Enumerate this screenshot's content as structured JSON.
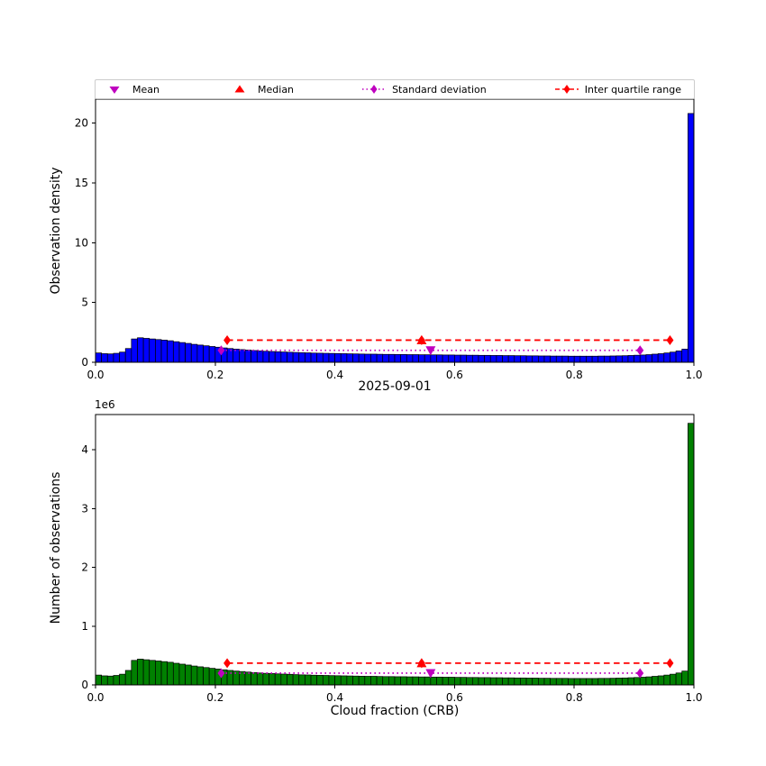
{
  "figure": {
    "title": "2025-09-01"
  },
  "colors": {
    "mean_std": "#bf00bf",
    "median_iqr": "#ff0000",
    "top_bar": "#0000ff",
    "bottom_bar": "#008000",
    "edge": "#000000"
  },
  "legend": {
    "items": [
      {
        "label": "Mean",
        "marker": "triangle-down",
        "color": "#bf00bf"
      },
      {
        "label": "Median",
        "marker": "triangle-up",
        "color": "#ff0000"
      },
      {
        "label": "Standard deviation",
        "marker": "diamond-dotted-line",
        "color": "#bf00bf"
      },
      {
        "label": "Inter quartile range",
        "marker": "diamond-dashed-line",
        "color": "#ff0000"
      }
    ]
  },
  "chart_data": [
    {
      "type": "bar",
      "title": "",
      "xlabel": "",
      "ylabel": "Observation density",
      "scale_label": "",
      "bar_color": "#0000ff",
      "edge_color": "#000000",
      "xlim": [
        0.0,
        1.0
      ],
      "ylim": [
        0,
        22
      ],
      "xticks": [
        0.0,
        0.2,
        0.4,
        0.6,
        0.8,
        1.0
      ],
      "xtick_labels": [
        "0.0",
        "0.2",
        "0.4",
        "0.6",
        "0.8",
        "1.0"
      ],
      "yticks": [
        0,
        5,
        10,
        15,
        20
      ],
      "ytick_labels": [
        "0",
        "5",
        "10",
        "15",
        "20"
      ],
      "bin_start": 0.0,
      "bin_width": 0.01,
      "values": [
        0.78,
        0.72,
        0.7,
        0.75,
        0.85,
        1.15,
        1.95,
        2.05,
        2.0,
        1.95,
        1.9,
        1.85,
        1.8,
        1.72,
        1.65,
        1.58,
        1.5,
        1.44,
        1.38,
        1.32,
        1.26,
        1.2,
        1.15,
        1.1,
        1.06,
        1.02,
        0.98,
        0.95,
        0.92,
        0.9,
        0.88,
        0.86,
        0.84,
        0.82,
        0.8,
        0.79,
        0.77,
        0.76,
        0.75,
        0.74,
        0.73,
        0.72,
        0.71,
        0.7,
        0.69,
        0.68,
        0.68,
        0.67,
        0.66,
        0.66,
        0.65,
        0.65,
        0.64,
        0.64,
        0.63,
        0.63,
        0.62,
        0.62,
        0.61,
        0.61,
        0.6,
        0.6,
        0.59,
        0.59,
        0.58,
        0.58,
        0.57,
        0.57,
        0.56,
        0.56,
        0.55,
        0.55,
        0.54,
        0.54,
        0.53,
        0.53,
        0.52,
        0.52,
        0.52,
        0.51,
        0.51,
        0.51,
        0.51,
        0.51,
        0.52,
        0.52,
        0.53,
        0.54,
        0.55,
        0.57,
        0.59,
        0.61,
        0.64,
        0.68,
        0.72,
        0.78,
        0.85,
        0.95,
        1.1,
        20.8
      ],
      "stats": {
        "mean_x": 0.56,
        "median_x": 0.545,
        "std_range": [
          0.21,
          0.91
        ],
        "std_line_y": 1.0,
        "iqr_range": [
          0.22,
          0.96
        ],
        "iqr_line_y": 1.85
      }
    },
    {
      "type": "bar",
      "title": "",
      "xlabel": "Cloud fraction (CRB)",
      "ylabel": "Number of observations",
      "scale_label": "1e6",
      "bar_color": "#008000",
      "edge_color": "#000000",
      "xlim": [
        0.0,
        1.0
      ],
      "ylim": [
        0,
        4.6
      ],
      "xticks": [
        0.0,
        0.2,
        0.4,
        0.6,
        0.8,
        1.0
      ],
      "xtick_labels": [
        "0.0",
        "0.2",
        "0.4",
        "0.6",
        "0.8",
        "1.0"
      ],
      "yticks": [
        0,
        1,
        2,
        3,
        4
      ],
      "ytick_labels": [
        "0",
        "1",
        "2",
        "3",
        "4"
      ],
      "bin_start": 0.0,
      "bin_width": 0.01,
      "values": [
        0.167,
        0.154,
        0.15,
        0.161,
        0.182,
        0.246,
        0.417,
        0.439,
        0.428,
        0.417,
        0.407,
        0.396,
        0.385,
        0.368,
        0.353,
        0.338,
        0.321,
        0.308,
        0.295,
        0.282,
        0.27,
        0.257,
        0.246,
        0.235,
        0.227,
        0.218,
        0.21,
        0.203,
        0.197,
        0.193,
        0.188,
        0.184,
        0.18,
        0.175,
        0.171,
        0.169,
        0.165,
        0.163,
        0.161,
        0.158,
        0.156,
        0.154,
        0.152,
        0.15,
        0.148,
        0.146,
        0.146,
        0.143,
        0.141,
        0.141,
        0.139,
        0.139,
        0.137,
        0.137,
        0.135,
        0.135,
        0.133,
        0.133,
        0.131,
        0.131,
        0.128,
        0.128,
        0.126,
        0.126,
        0.124,
        0.124,
        0.122,
        0.122,
        0.12,
        0.12,
        0.118,
        0.118,
        0.116,
        0.116,
        0.113,
        0.113,
        0.111,
        0.111,
        0.111,
        0.109,
        0.109,
        0.109,
        0.109,
        0.109,
        0.111,
        0.111,
        0.113,
        0.116,
        0.118,
        0.122,
        0.126,
        0.131,
        0.137,
        0.146,
        0.154,
        0.167,
        0.182,
        0.203,
        0.235,
        4.451
      ],
      "stats": {
        "mean_x": 0.56,
        "median_x": 0.545,
        "std_range": [
          0.21,
          0.91
        ],
        "std_line_y": 0.2,
        "iqr_range": [
          0.22,
          0.96
        ],
        "iqr_line_y": 0.37
      }
    }
  ]
}
